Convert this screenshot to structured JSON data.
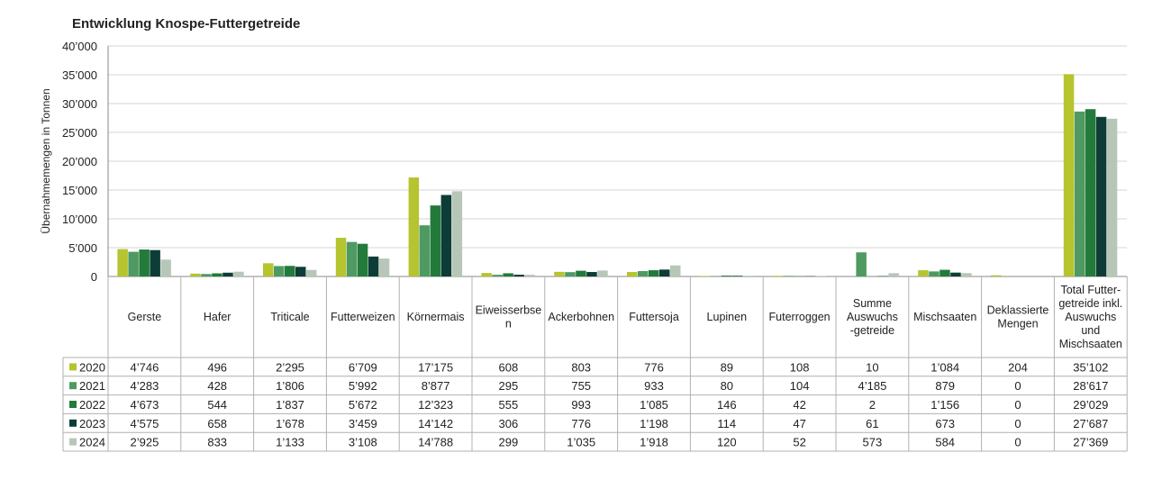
{
  "chart_data": {
    "type": "bar",
    "title": "Entwicklung Knospe-Futtergetreide",
    "ylabel": "Übernahmemengen in Tonnen",
    "xlabel": "",
    "ylim": [
      0,
      40000
    ],
    "yticks": [
      "0",
      "5’000",
      "10’000",
      "15’000",
      "20’000",
      "25’000",
      "30’000",
      "35’000",
      "40’000"
    ],
    "grid": true,
    "legend": "table-left",
    "categories": [
      [
        "Gerste"
      ],
      [
        "Hafer"
      ],
      [
        "Triticale"
      ],
      [
        "Futterweizen"
      ],
      [
        "Körnermais"
      ],
      [
        "Eiweisserbse",
        "n"
      ],
      [
        "Ackerbohnen"
      ],
      [
        "Futtersoja"
      ],
      [
        "Lupinen"
      ],
      [
        "Futerroggen"
      ],
      [
        "Summe",
        "Auswuchs",
        "-getreide"
      ],
      [
        "Mischsaaten"
      ],
      [
        "Deklassierte",
        "Mengen"
      ],
      [
        "Total Futter-",
        "getreide inkl.",
        "Auswuchs",
        "und",
        "Mischsaaten"
      ]
    ],
    "series": [
      {
        "name": "2020",
        "color": "#b5c42f",
        "values": [
          4746,
          496,
          2295,
          6709,
          17175,
          608,
          803,
          776,
          89,
          108,
          10,
          1084,
          204,
          35102
        ],
        "labels": [
          "4’746",
          "496",
          "2’295",
          "6’709",
          "17’175",
          "608",
          "803",
          "776",
          "89",
          "108",
          "10",
          "1’084",
          "204",
          "35’102"
        ]
      },
      {
        "name": "2021",
        "color": "#4f9a62",
        "values": [
          4283,
          428,
          1806,
          5992,
          8877,
          295,
          755,
          933,
          80,
          104,
          4185,
          879,
          0,
          28617
        ],
        "labels": [
          "4’283",
          "428",
          "1’806",
          "5’992",
          "8’877",
          "295",
          "755",
          "933",
          "80",
          "104",
          "4’185",
          "879",
          "0",
          "28’617"
        ]
      },
      {
        "name": "2022",
        "color": "#237a3b",
        "values": [
          4673,
          544,
          1837,
          5672,
          12323,
          555,
          993,
          1085,
          146,
          42,
          2,
          1156,
          0,
          29029
        ],
        "labels": [
          "4’673",
          "544",
          "1’837",
          "5’672",
          "12’323",
          "555",
          "993",
          "1’085",
          "146",
          "42",
          "2",
          "1’156",
          "0",
          "29’029"
        ]
      },
      {
        "name": "2023",
        "color": "#0d3d36",
        "values": [
          4575,
          658,
          1678,
          3459,
          14142,
          306,
          776,
          1198,
          114,
          47,
          61,
          673,
          0,
          27687
        ],
        "labels": [
          "4’575",
          "658",
          "1’678",
          "3’459",
          "14’142",
          "306",
          "776",
          "1’198",
          "114",
          "47",
          "61",
          "673",
          "0",
          "27’687"
        ]
      },
      {
        "name": "2024",
        "color": "#b6c7b8",
        "values": [
          2925,
          833,
          1133,
          3108,
          14788,
          299,
          1035,
          1918,
          120,
          52,
          573,
          584,
          0,
          27369
        ],
        "labels": [
          "2’925",
          "833",
          "1’133",
          "3’108",
          "14’788",
          "299",
          "1’035",
          "1’918",
          "120",
          "52",
          "573",
          "584",
          "0",
          "27’369"
        ]
      }
    ]
  }
}
